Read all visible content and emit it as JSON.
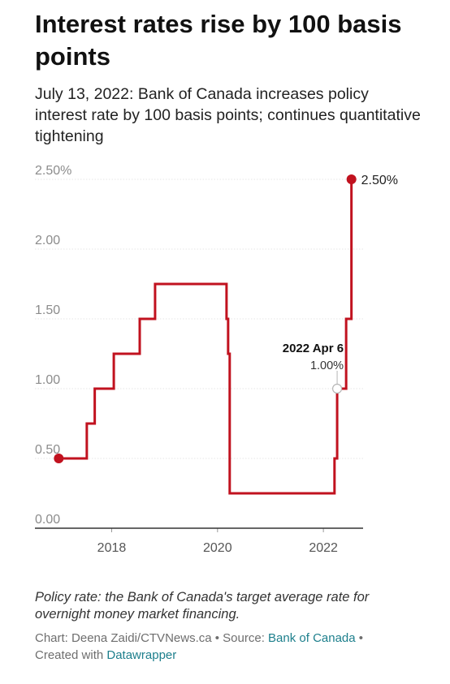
{
  "title": "Interest rates rise by 100 basis points",
  "subtitle": "July 13, 2022: Bank of Canada increases policy interest rate by 100 basis points; continues quantitative tightening",
  "notes": "Policy rate: the Bank of Canada's target average rate for overnight money market financing.",
  "footer": {
    "chart_prefix": "Chart: Deena Zaidi/CTVNews.ca • Source: ",
    "source_link": "Bank of Canada",
    "sep": " • ",
    "created_prefix": "Created with ",
    "created_link": "Datawrapper"
  },
  "colors": {
    "line": "#c1121f",
    "grid": "#e6e6e6",
    "axis": "#333333",
    "link": "#1d7f8c"
  },
  "chart_data": {
    "type": "line",
    "step": true,
    "ylim": [
      0,
      2.5
    ],
    "xlim": [
      2016.55,
      2022.75
    ],
    "y_ticks": [
      0,
      0.5,
      1.0,
      1.5,
      2.0,
      2.5
    ],
    "y_tick_labels": [
      "0.00",
      "0.50",
      "1.00",
      "1.50",
      "2.00",
      "2.50%"
    ],
    "x_ticks": [
      2018,
      2020,
      2022
    ],
    "x_tick_labels": [
      "2018",
      "2020",
      "2022"
    ],
    "series": [
      {
        "points": [
          [
            2017.0,
            0.5
          ],
          [
            2017.53,
            0.75
          ],
          [
            2017.68,
            1.0
          ],
          [
            2018.04,
            1.25
          ],
          [
            2018.53,
            1.5
          ],
          [
            2018.82,
            1.75
          ],
          [
            2020.17,
            1.5
          ],
          [
            2020.2,
            1.25
          ],
          [
            2020.23,
            0.25
          ],
          [
            2022.21,
            0.5
          ],
          [
            2022.26,
            1.0
          ],
          [
            2022.43,
            1.5
          ],
          [
            2022.53,
            2.5
          ]
        ],
        "end_marker": true,
        "start_marker": true
      }
    ],
    "end_label": "2.50%",
    "annotation": {
      "x": 2022.26,
      "y": 1.0,
      "title": "2022 Apr 6",
      "value": "1.00%"
    }
  }
}
